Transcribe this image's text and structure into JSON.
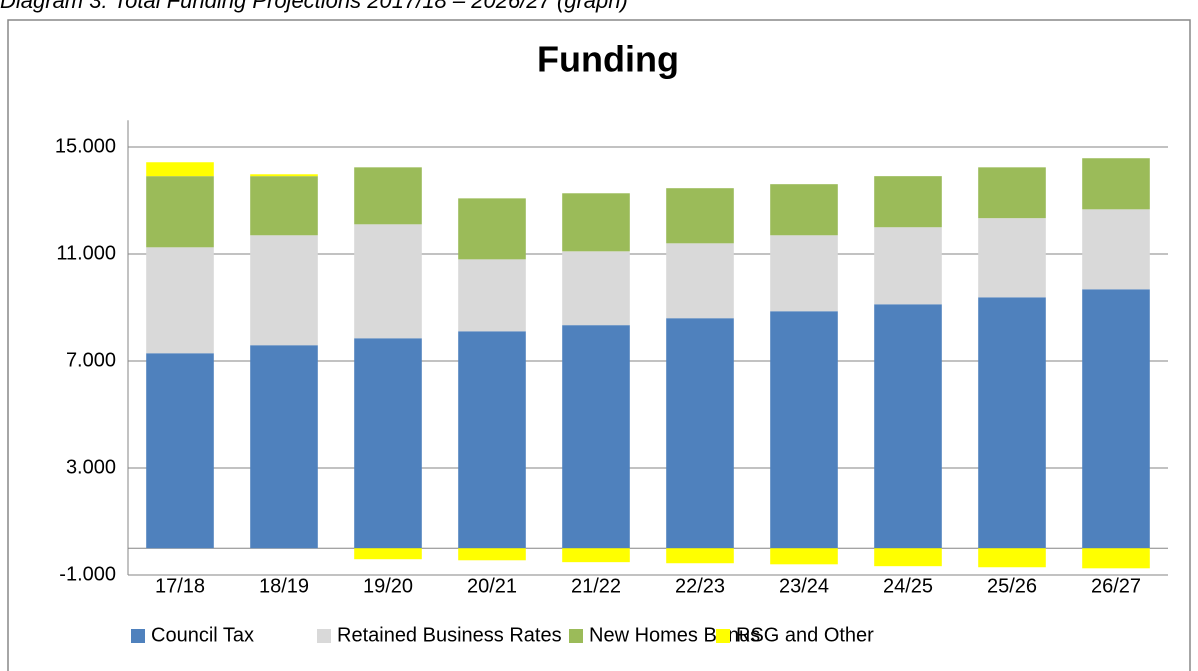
{
  "heading": "Diagram 3: Total Funding Projections 2017/18 – 2026/27 (graph)",
  "chart_data": {
    "type": "stacked_bar",
    "title": "Funding",
    "categories": [
      "17/18",
      "18/19",
      "19/20",
      "20/21",
      "21/22",
      "22/23",
      "23/24",
      "24/25",
      "25/26",
      "26/27"
    ],
    "series": [
      {
        "name": "Council Tax",
        "color": "#4f81bd",
        "values": [
          7290,
          7590,
          7850,
          8110,
          8340,
          8600,
          8860,
          9120,
          9380,
          9680
        ]
      },
      {
        "name": "Retained Business Rates",
        "color": "#d9d9d9",
        "values": [
          3960,
          4110,
          4260,
          2690,
          2760,
          2800,
          2840,
          2880,
          2960,
          2990
        ]
      },
      {
        "name": "New Homes Bonus",
        "color": "#9bbb59",
        "values": [
          2660,
          2210,
          2130,
          2280,
          2170,
          2060,
          1910,
          1910,
          1900,
          1910
        ]
      },
      {
        "name": "RSG and Other",
        "color": "#ffff00",
        "values": [
          520,
          70,
          -410,
          -450,
          -520,
          -560,
          -600,
          -670,
          -710,
          -750
        ]
      }
    ],
    "ylim": [
      -1000,
      16000
    ],
    "yticks": [
      {
        "value": -1000,
        "label": "-1.000"
      },
      {
        "value": 3000,
        "label": "3.000"
      },
      {
        "value": 7000,
        "label": "7.000"
      },
      {
        "value": 11000,
        "label": "11.000"
      },
      {
        "value": 15000,
        "label": "15.000"
      }
    ],
    "grid": true,
    "legend": "bottom"
  }
}
